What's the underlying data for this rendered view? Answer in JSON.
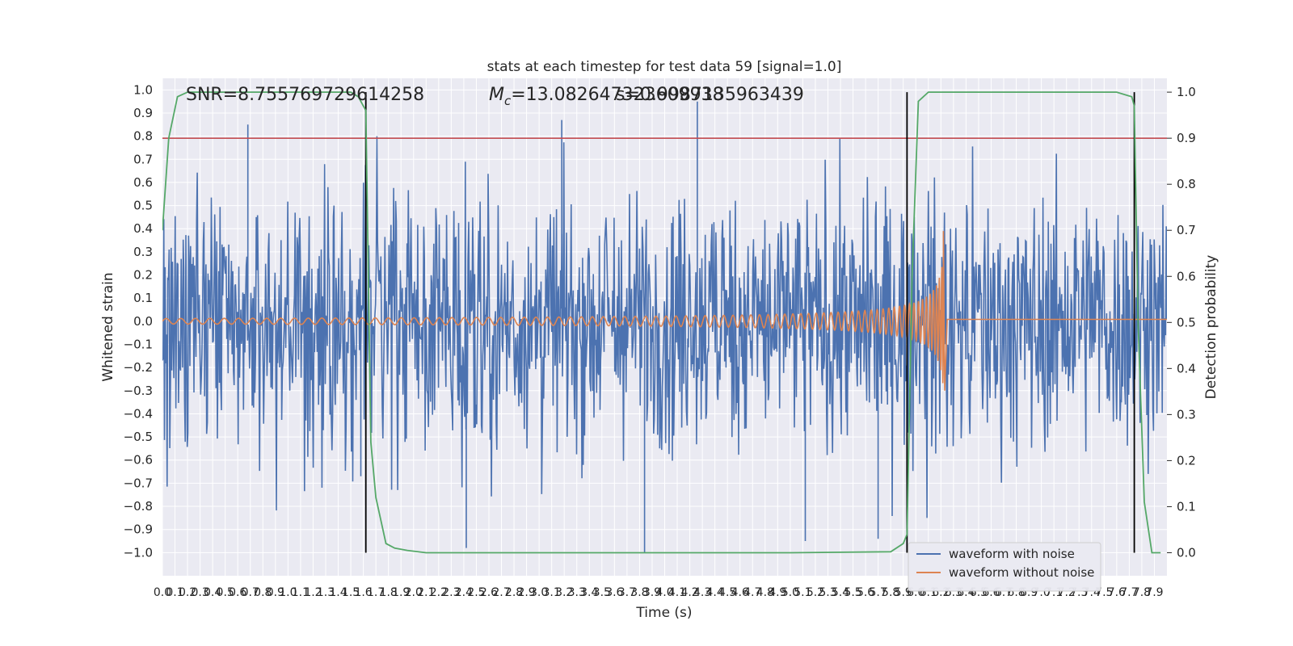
{
  "chart_data": {
    "type": "line",
    "title": "stats at each timestep for test data 59 [signal=1.0]",
    "xlabel": "Time (s)",
    "ylabel": "Whitened strain",
    "ylabel_right": "Detection probability",
    "xlim": [
      0.0,
      8.0
    ],
    "ylim": [
      -1.1,
      1.05
    ],
    "ylim_right": [
      -0.05,
      1.03
    ],
    "x_ticks": [
      "0.0",
      "0.1",
      "0.2",
      "0.3",
      "0.4",
      "0.5",
      "0.6",
      "0.7",
      "0.8",
      "0.9",
      "1.0",
      "1.1",
      "1.2",
      "1.3",
      "1.4",
      "1.5",
      "1.6",
      "1.7",
      "1.8",
      "1.9",
      "2.0",
      "2.1",
      "2.2",
      "2.3",
      "2.4",
      "2.5",
      "2.6",
      "2.7",
      "2.8",
      "2.9",
      "3.0",
      "3.1",
      "3.2",
      "3.3",
      "3.4",
      "3.5",
      "3.6",
      "3.7",
      "3.8",
      "3.9",
      "4.0",
      "4.1",
      "4.2",
      "4.3",
      "4.4",
      "4.5",
      "4.6",
      "4.7",
      "4.8",
      "4.9",
      "5.0",
      "5.1",
      "5.2",
      "5.3",
      "5.4",
      "5.5",
      "5.6",
      "5.7",
      "5.8",
      "5.9",
      "6.0",
      "6.1",
      "6.2",
      "6.3",
      "6.4",
      "6.5",
      "6.6",
      "6.7",
      "6.8",
      "6.9",
      "7.0",
      "7.1",
      "7.2",
      "7.3",
      "7.4",
      "7.5",
      "7.6",
      "7.7",
      "7.8",
      "7.9"
    ],
    "y_ticks": [
      "1.0",
      "0.9",
      "0.8",
      "0.7",
      "0.6",
      "0.5",
      "0.4",
      "0.3",
      "0.2",
      "0.1",
      "0.0",
      "−0.1",
      "−0.2",
      "−0.3",
      "−0.4",
      "−0.5",
      "−0.6",
      "−0.7",
      "−0.8",
      "−0.9",
      "−1.0"
    ],
    "y_tick_values": [
      1.0,
      0.9,
      0.8,
      0.7,
      0.6,
      0.5,
      0.4,
      0.3,
      0.2,
      0.1,
      0.0,
      -0.1,
      -0.2,
      -0.3,
      -0.4,
      -0.5,
      -0.6,
      -0.7,
      -0.8,
      -0.9,
      -1.0
    ],
    "y_ticks_right": [
      "1.0",
      "0.9",
      "0.8",
      "0.7",
      "0.6",
      "0.5",
      "0.4",
      "0.3",
      "0.2",
      "0.1",
      "0.0"
    ],
    "y_tick_values_right": [
      1.0,
      0.9,
      0.8,
      0.7,
      0.6,
      0.5,
      0.4,
      0.3,
      0.2,
      0.1,
      0.0
    ],
    "annotations": {
      "snr": "SNR=8.755769729614258",
      "mc_symbol": "M",
      "mc_sub": "c",
      "mc_value": "=13.082647323609938",
      "overlap": "s=0.9987135963439"
    },
    "threshold_right": 0.9,
    "event_lines_x": [
      1.62,
      5.93,
      7.74
    ],
    "series": [
      {
        "name": "waveform with noise",
        "color": "#4c72b0",
        "noise_amplitude": 0.45,
        "peaks_x": [
          0.68,
          1.58,
          3.18,
          4.26,
          5.12,
          5.7,
          3.84,
          2.42
        ],
        "peaks_y": [
          0.85,
          -0.67,
          0.87,
          0.95,
          -0.95,
          -0.94,
          -1.0,
          -0.98
        ]
      },
      {
        "name": "waveform without noise",
        "color": "#dd8452",
        "chirp_start_amplitude": 0.012,
        "chirp_peak_x": 6.22,
        "chirp_peak_y_max": 0.39,
        "chirp_peak_y_min": -0.3,
        "ringdown_level": 0.008
      },
      {
        "name": "detection probability",
        "color": "#55a868",
        "axis": "right",
        "x": [
          0.0,
          0.05,
          0.12,
          0.2,
          0.3,
          0.5,
          1.0,
          1.5,
          1.56,
          1.62,
          1.66,
          1.7,
          1.78,
          1.85,
          1.95,
          2.1,
          2.5,
          3.0,
          4.0,
          5.0,
          5.8,
          5.9,
          5.93,
          5.97,
          6.02,
          6.1,
          6.5,
          7.0,
          7.6,
          7.72,
          7.74,
          7.77,
          7.82,
          7.88,
          7.95
        ],
        "y": [
          0.7,
          0.9,
          0.99,
          1.0,
          1.0,
          1.0,
          1.0,
          1.0,
          0.99,
          0.96,
          0.24,
          0.12,
          0.02,
          0.01,
          0.005,
          0.0,
          0.0,
          0.0,
          0.0,
          0.0,
          0.002,
          0.02,
          0.04,
          0.6,
          0.98,
          1.0,
          1.0,
          1.0,
          1.0,
          0.99,
          0.97,
          0.5,
          0.11,
          0.0,
          0.0
        ]
      }
    ],
    "legend": {
      "placement": "lower-right",
      "entries": [
        "waveform with noise",
        "waveform without noise"
      ]
    },
    "grid": true
  }
}
